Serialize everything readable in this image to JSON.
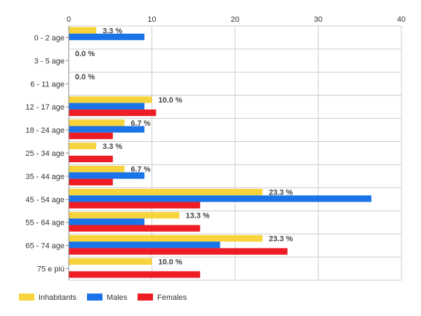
{
  "chart_data": {
    "type": "bar",
    "orientation": "horizontal",
    "categories": [
      "0 - 2 age",
      "3 - 5 age",
      "6 - 11 age",
      "12 - 17 age",
      "18 - 24 age",
      "25 - 34 age",
      "35 - 44 age",
      "45 - 54 age",
      "55 - 64 age",
      "65 - 74 age",
      "75 e più"
    ],
    "series": [
      {
        "name": "Inhabitants",
        "color": "#f7d43c",
        "values": [
          3.3,
          0,
          0,
          10.0,
          6.7,
          3.3,
          6.7,
          23.3,
          13.3,
          23.3,
          10.0
        ]
      },
      {
        "name": "Males",
        "color": "#1a73e8",
        "values": [
          9.1,
          0,
          0,
          9.1,
          9.1,
          0,
          9.1,
          36.4,
          9.1,
          18.2,
          0
        ]
      },
      {
        "name": "Females",
        "color": "#ee1c24",
        "values": [
          0,
          0,
          0,
          10.5,
          5.3,
          5.3,
          5.3,
          15.8,
          15.8,
          26.3,
          15.8
        ]
      }
    ],
    "data_labels": [
      "3.3 %",
      "0.0 %",
      "0.0 %",
      "10.0 %",
      "6.7 %",
      "3.3 %",
      "6.7 %",
      "23.3 %",
      "13.3 %",
      "23.3 %",
      "10.0 %"
    ],
    "xlim": [
      0,
      40
    ],
    "xticks": [
      "0",
      "10",
      "20",
      "30",
      "40"
    ],
    "x_axis_position": "top",
    "grid": true,
    "legend_position": "bottom-left"
  }
}
